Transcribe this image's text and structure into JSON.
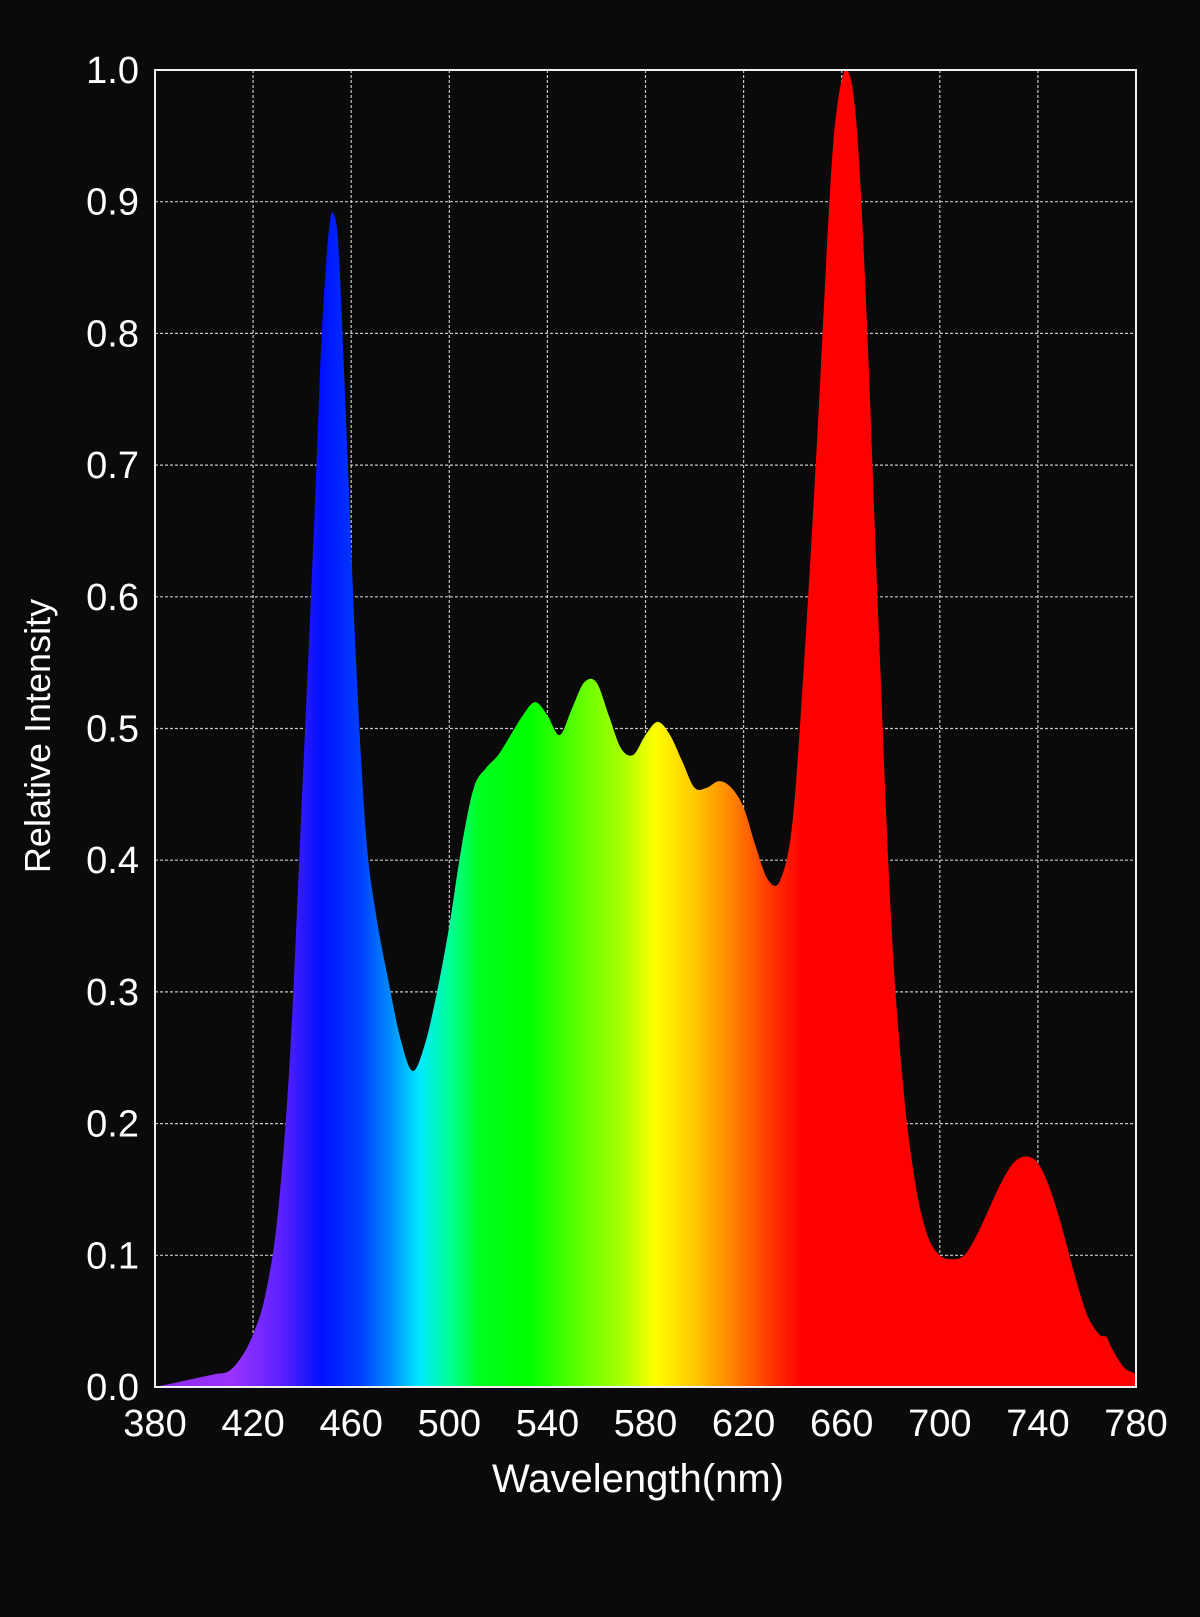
{
  "chart_data": {
    "type": "area",
    "title": "",
    "xlabel": "Wavelength(nm)",
    "ylabel": "Relative Intensity",
    "xlim": [
      380,
      780
    ],
    "ylim": [
      0,
      1.0
    ],
    "x_ticks": [
      "380",
      "420",
      "460",
      "500",
      "540",
      "580",
      "620",
      "660",
      "700",
      "740",
      "780"
    ],
    "y_ticks": [
      "0.0",
      "0.1",
      "0.2",
      "0.3",
      "0.4",
      "0.5",
      "0.6",
      "0.7",
      "0.8",
      "0.9",
      "1.0"
    ],
    "grid": true,
    "fill": "visible-spectrum-gradient",
    "series": [
      {
        "x": [
          380,
          390,
          400,
          405,
          410,
          415,
          420,
          425,
          430,
          435,
          440,
          445,
          448,
          451,
          453,
          455,
          458,
          462,
          466,
          470,
          475,
          480,
          485,
          490,
          495,
          500,
          505,
          510,
          515,
          520,
          525,
          530,
          535,
          540,
          545,
          550,
          555,
          560,
          565,
          570,
          575,
          580,
          585,
          590,
          595,
          600,
          605,
          610,
          615,
          620,
          625,
          630,
          635,
          640,
          645,
          650,
          655,
          658,
          662,
          666,
          670,
          675,
          680,
          685,
          690,
          695,
          700,
          705,
          710,
          715,
          720,
          725,
          730,
          735,
          740,
          745,
          750,
          755,
          760,
          765,
          768,
          770,
          775,
          780
        ],
        "y": [
          0.0,
          0.004,
          0.008,
          0.01,
          0.012,
          0.022,
          0.04,
          0.07,
          0.13,
          0.25,
          0.45,
          0.66,
          0.8,
          0.88,
          0.89,
          0.86,
          0.73,
          0.55,
          0.42,
          0.36,
          0.31,
          0.265,
          0.24,
          0.26,
          0.3,
          0.35,
          0.41,
          0.455,
          0.47,
          0.48,
          0.495,
          0.51,
          0.52,
          0.51,
          0.495,
          0.515,
          0.535,
          0.535,
          0.51,
          0.485,
          0.48,
          0.495,
          0.505,
          0.495,
          0.475,
          0.455,
          0.455,
          0.46,
          0.455,
          0.44,
          0.41,
          0.385,
          0.385,
          0.43,
          0.56,
          0.72,
          0.9,
          0.97,
          1.0,
          0.96,
          0.82,
          0.58,
          0.36,
          0.23,
          0.155,
          0.115,
          0.1,
          0.097,
          0.1,
          0.115,
          0.135,
          0.155,
          0.17,
          0.175,
          0.17,
          0.15,
          0.12,
          0.085,
          0.055,
          0.04,
          0.038,
          0.03,
          0.015,
          0.01
        ]
      }
    ]
  },
  "colors": {
    "background": "#0a0a0a",
    "grid": "#e6e6e6",
    "text": "#ffffff"
  }
}
